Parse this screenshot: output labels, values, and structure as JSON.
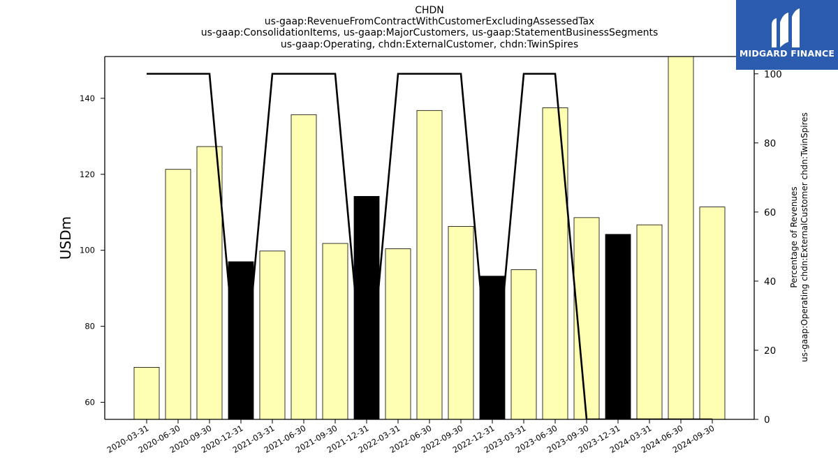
{
  "header": {
    "title_lines": [
      "CHDN",
      "us-gaap:RevenueFromContractWithCustomerExcludingAssessedTax",
      "us-gaap:ConsolidationItems, us-gaap:MajorCustomers, us-gaap:StatementBusinessSegments",
      "us-gaap:Operating, chdn:ExternalCustomer, chdn:TwinSpires"
    ]
  },
  "logo": {
    "text": "MIDGARD FINANCE",
    "icon": "midgard-logo-icon",
    "color": "#2b5cb0"
  },
  "chart_data": {
    "type": "bar",
    "categories": [
      "2020-03-31",
      "2020-06-30",
      "2020-09-30",
      "2020-12-31",
      "2021-03-31",
      "2021-06-30",
      "2021-09-30",
      "2021-12-31",
      "2022-03-31",
      "2022-06-30",
      "2022-09-30",
      "2022-12-31",
      "2023-03-31",
      "2023-06-30",
      "2023-09-30",
      "2023-12-31",
      "2024-03-31",
      "2024-06-30",
      "2024-09-30"
    ],
    "series": [
      {
        "axis": "left",
        "kind": "bar",
        "values": [
          69.2,
          121.3,
          127.3,
          97.0,
          99.8,
          135.7,
          101.8,
          114.2,
          100.4,
          136.8,
          106.3,
          93.2,
          94.9,
          137.5,
          108.6,
          104.2,
          106.7,
          151.5,
          111.4
        ],
        "highlight": [
          false,
          false,
          false,
          true,
          false,
          false,
          false,
          true,
          false,
          false,
          false,
          true,
          false,
          false,
          false,
          true,
          false,
          false,
          false
        ]
      },
      {
        "axis": "right",
        "kind": "line",
        "values": [
          100,
          100,
          100,
          0,
          100,
          100,
          100,
          0,
          100,
          100,
          100,
          0,
          100,
          100,
          0,
          0,
          0,
          0,
          0
        ]
      }
    ],
    "ylabel": "USDm",
    "ylabel_right": [
      "Percentage of Revenues",
      "us-gaap:Operating chdn:ExternalCustomer chdn:TwinSpires"
    ],
    "ylim": [
      55.5,
      151
    ],
    "ylim_right": [
      0,
      105
    ],
    "yticks": [
      60,
      80,
      100,
      120,
      140
    ],
    "yticks_right": [
      0,
      20,
      40,
      60,
      80,
      100
    ],
    "colors": {
      "bar": "#ffffb3",
      "bar_highlight": "#000000",
      "line": "#000000"
    },
    "grid": false,
    "legend": "none"
  }
}
